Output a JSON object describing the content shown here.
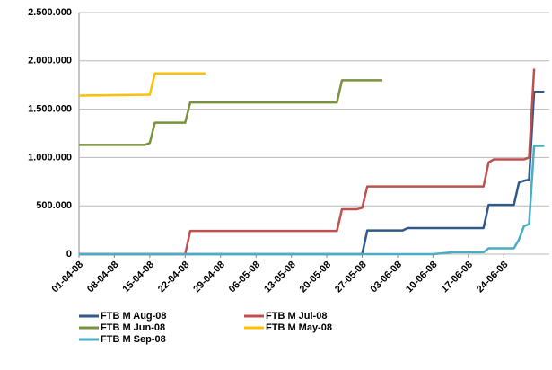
{
  "chart_data": {
    "type": "line",
    "ylim": [
      0,
      2500000
    ],
    "yticks": [
      0,
      {
        "value": 500000,
        "label": "500.000"
      },
      {
        "value": 1000000,
        "label": "1.000.000"
      },
      {
        "value": 1500000,
        "label": "1.500.000"
      },
      {
        "value": 2000000,
        "label": "2.000.000"
      },
      {
        "value": 2500000,
        "label": "2.500.000"
      }
    ],
    "xlim": [
      "2008-04-01",
      "2008-07-03"
    ],
    "xticks": [
      {
        "value": "2008-04-01",
        "label": "01-04-08"
      },
      {
        "value": "2008-04-08",
        "label": "08-04-08"
      },
      {
        "value": "2008-04-15",
        "label": "15-04-08"
      },
      {
        "value": "2008-04-22",
        "label": "22-04-08"
      },
      {
        "value": "2008-04-29",
        "label": "29-04-08"
      },
      {
        "value": "2008-05-06",
        "label": "06-05-08"
      },
      {
        "value": "2008-05-13",
        "label": "13-05-08"
      },
      {
        "value": "2008-05-20",
        "label": "20-05-08"
      },
      {
        "value": "2008-05-27",
        "label": "27-05-08"
      },
      {
        "value": "2008-06-03",
        "label": "03-06-08"
      },
      {
        "value": "2008-06-10",
        "label": "10-06-08"
      },
      {
        "value": "2008-06-17",
        "label": "17-06-08"
      },
      {
        "value": "2008-06-24",
        "label": "24-06-08"
      }
    ],
    "grid": true,
    "legend": "bottom",
    "series": [
      {
        "name": "FTB M Aug-08",
        "color": "#2f5a8a",
        "x": [
          "2008-04-01",
          "2008-05-27",
          "2008-05-28",
          "2008-06-04",
          "2008-06-05",
          "2008-06-20",
          "2008-06-21",
          "2008-06-26",
          "2008-06-27",
          "2008-06-28",
          "2008-06-29",
          "2008-06-30",
          "2008-07-02"
        ],
        "values": [
          0,
          0,
          245000,
          245000,
          270000,
          270000,
          510000,
          510000,
          740000,
          760000,
          770000,
          1680000,
          1680000
        ]
      },
      {
        "name": "FTB M Jul-08",
        "color": "#c0504d",
        "x": [
          "2008-04-01",
          "2008-04-22",
          "2008-04-23",
          "2008-05-22",
          "2008-05-23",
          "2008-05-26",
          "2008-05-27",
          "2008-05-28",
          "2008-06-20",
          "2008-06-21",
          "2008-06-22",
          "2008-06-28",
          "2008-06-29",
          "2008-06-30"
        ],
        "values": [
          0,
          0,
          240000,
          240000,
          465000,
          465000,
          480000,
          700000,
          700000,
          950000,
          980000,
          980000,
          1000000,
          1920000
        ]
      },
      {
        "name": "FTB M Jun-08",
        "color": "#77933c",
        "x": [
          "2008-04-01",
          "2008-04-14",
          "2008-04-15",
          "2008-04-16",
          "2008-04-22",
          "2008-04-23",
          "2008-05-22",
          "2008-05-23",
          "2008-05-31"
        ],
        "values": [
          1130000,
          1130000,
          1150000,
          1360000,
          1360000,
          1570000,
          1570000,
          1800000,
          1800000
        ]
      },
      {
        "name": "FTB M May-08",
        "color": "#ffc000",
        "x": [
          "2008-04-01",
          "2008-04-15",
          "2008-04-16",
          "2008-04-26"
        ],
        "values": [
          1640000,
          1650000,
          1870000,
          1870000
        ]
      },
      {
        "name": "FTB M Sep-08",
        "color": "#4bacc6",
        "x": [
          "2008-04-01",
          "2008-06-10",
          "2008-06-14",
          "2008-06-20",
          "2008-06-21",
          "2008-06-26",
          "2008-06-27",
          "2008-06-28",
          "2008-06-29",
          "2008-06-30",
          "2008-07-02"
        ],
        "values": [
          0,
          0,
          20000,
          20000,
          60000,
          60000,
          150000,
          290000,
          310000,
          1120000,
          1120000
        ]
      }
    ]
  }
}
